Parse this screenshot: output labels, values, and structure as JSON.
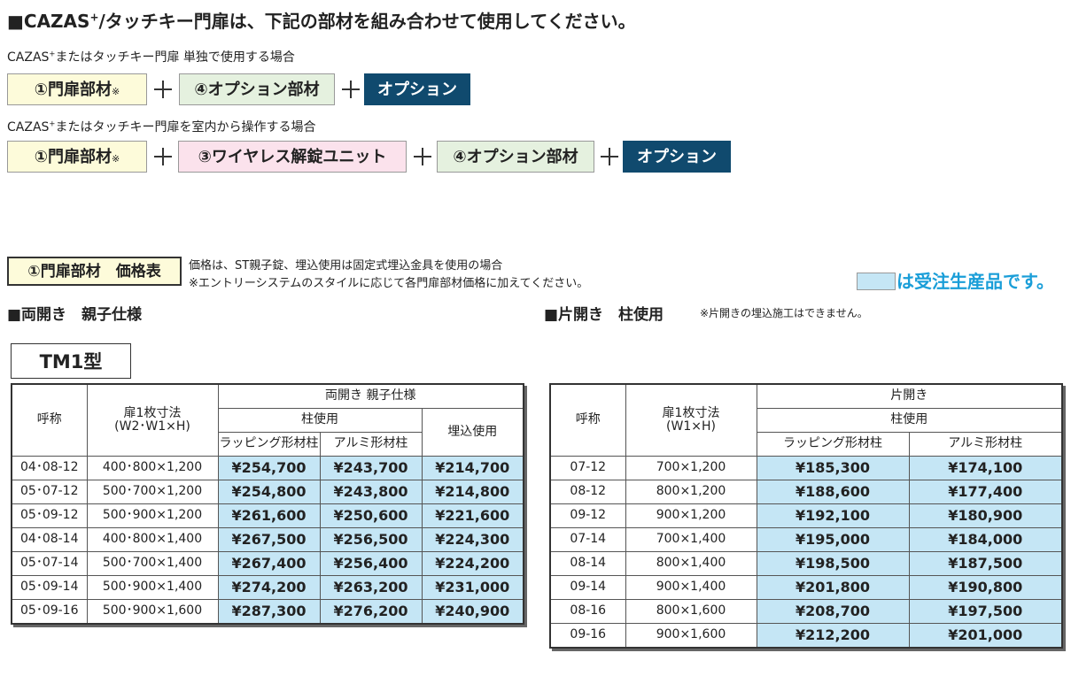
{
  "header": {
    "title": [
      "■CAZAS",
      "+",
      "/タッチキー門扉は、下記の部材を組み合わせて使用してください。"
    ]
  },
  "cases": [
    {
      "label": [
        "CAZAS",
        "+",
        "またはタッチキー門扉 単独で使用する場合"
      ],
      "items": [
        "①門扉部材",
        "※",
        "④オプション部材",
        "オプション"
      ]
    },
    {
      "label": [
        "CAZAS",
        "+",
        "またはタッチキー門扉を室内から操作する場合"
      ],
      "items": [
        "①門扉部材",
        "※",
        "③ワイヤレス解錠ユニット",
        "④オプション部材",
        "オプション"
      ]
    }
  ],
  "price_section": {
    "label": "①門扉部材　価格表",
    "notes": [
      "価格は、ST親子錠、埋込使用は固定式埋込金具を使用の場合",
      "※エントリーシステムのスタイルに応じて各門扉部材価格に加えてください。"
    ],
    "legend": "は受注生産品です。"
  },
  "table1": {
    "heading": "■両開き　親子仕様",
    "model": "TM1型",
    "head": {
      "name": "呼称",
      "size": [
        "扉1枚寸法",
        "(W2･W1×H)"
      ],
      "group": "両開き 親子仕様",
      "sub": "柱使用",
      "cols": [
        "ラッピング形材柱",
        "アルミ形材柱"
      ],
      "embed": "埋込使用"
    },
    "rows": [
      [
        "04･08-12",
        "400･800×1,200",
        "¥254,700",
        "¥243,700",
        "¥214,700"
      ],
      [
        "05･07-12",
        "500･700×1,200",
        "¥254,800",
        "¥243,800",
        "¥214,800"
      ],
      [
        "05･09-12",
        "500･900×1,200",
        "¥261,600",
        "¥250,600",
        "¥221,600"
      ],
      [
        "04･08-14",
        "400･800×1,400",
        "¥267,500",
        "¥256,500",
        "¥224,300"
      ],
      [
        "05･07-14",
        "500･700×1,400",
        "¥267,400",
        "¥256,400",
        "¥224,200"
      ],
      [
        "05･09-14",
        "500･900×1,400",
        "¥274,200",
        "¥263,200",
        "¥231,000"
      ],
      [
        "05･09-16",
        "500･900×1,600",
        "¥287,300",
        "¥276,200",
        "¥240,900"
      ]
    ]
  },
  "table2": {
    "heading": "■片開き　柱使用",
    "note": "※片開きの埋込施工はできません。",
    "head": {
      "name": "呼称",
      "size": [
        "扉1枚寸法",
        "(W1×H)"
      ],
      "group": "片開き",
      "sub": "柱使用",
      "cols": [
        "ラッピング形材柱",
        "アルミ形材柱"
      ]
    },
    "rows": [
      [
        "07-12",
        "700×1,200",
        "¥185,300",
        "¥174,100"
      ],
      [
        "08-12",
        "800×1,200",
        "¥188,600",
        "¥177,400"
      ],
      [
        "09-12",
        "900×1,200",
        "¥192,100",
        "¥180,900"
      ],
      [
        "07-14",
        "700×1,400",
        "¥195,000",
        "¥184,000"
      ],
      [
        "08-14",
        "800×1,400",
        "¥198,500",
        "¥187,500"
      ],
      [
        "09-14",
        "900×1,400",
        "¥201,800",
        "¥190,800"
      ],
      [
        "08-16",
        "800×1,600",
        "¥208,700",
        "¥197,500"
      ],
      [
        "09-16",
        "900×1,600",
        "¥212,200",
        "¥201,000"
      ]
    ]
  }
}
